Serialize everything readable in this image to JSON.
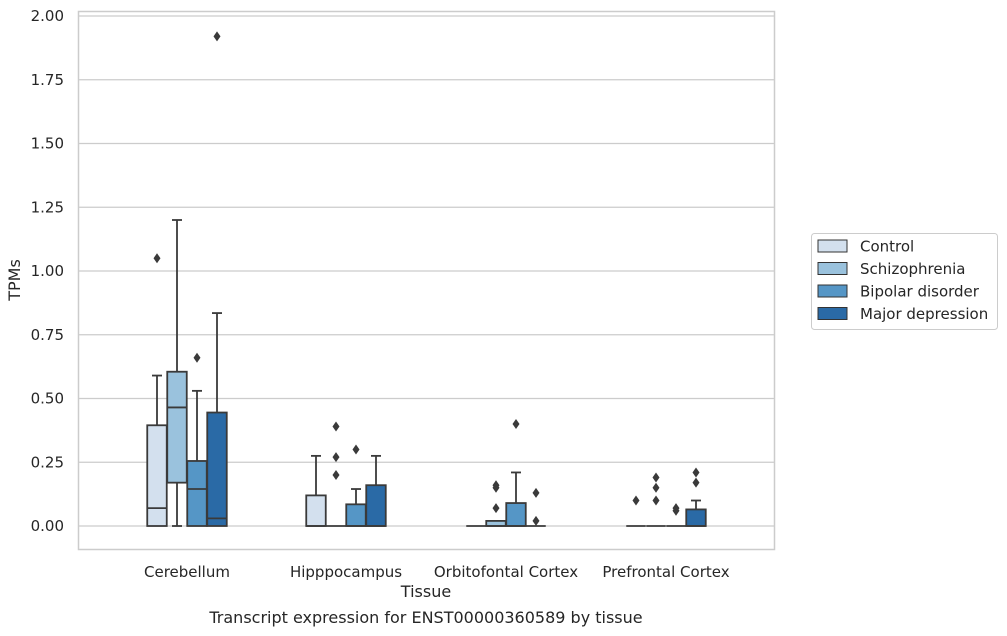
{
  "chart_data": {
    "type": "box",
    "title": "",
    "xlabel": "Tissue",
    "ylabel": "TPMs",
    "caption": "Transcript expression for ENST00000360589 by tissue",
    "categories": [
      "Cerebellum",
      "Hipppocampus",
      "Orbitofontal Cortex",
      "Prefrontal Cortex"
    ],
    "ylim": [
      -0.09,
      2.02
    ],
    "yticks": [
      "0.00",
      "0.25",
      "0.50",
      "0.75",
      "1.00",
      "1.25",
      "1.50",
      "1.75",
      "2.00"
    ],
    "grid": true,
    "legend_position": "right",
    "series": [
      {
        "name": "Control",
        "color": "#d3e0ee",
        "boxes": [
          {
            "category": "Cerebellum",
            "whisker_low": 0.0,
            "q1": 0.0,
            "median": 0.07,
            "q3": 0.395,
            "whisker_high": 0.59,
            "outliers": [
              1.05
            ]
          },
          {
            "category": "Hipppocampus",
            "whisker_low": 0.0,
            "q1": 0.0,
            "median": 0.0,
            "q3": 0.12,
            "whisker_high": 0.275,
            "outliers": []
          },
          {
            "category": "Orbitofontal Cortex",
            "whisker_low": 0.0,
            "q1": 0.0,
            "median": 0.0,
            "q3": 0.0,
            "whisker_high": 0.0,
            "outliers": []
          },
          {
            "category": "Prefrontal Cortex",
            "whisker_low": 0.0,
            "q1": 0.0,
            "median": 0.0,
            "q3": 0.0,
            "whisker_high": 0.0,
            "outliers": [
              0.1
            ]
          }
        ]
      },
      {
        "name": "Schizophrenia",
        "color": "#9ac2dd",
        "boxes": [
          {
            "category": "Cerebellum",
            "whisker_low": 0.0,
            "q1": 0.17,
            "median": 0.465,
            "q3": 0.605,
            "whisker_high": 1.2,
            "outliers": []
          },
          {
            "category": "Hipppocampus",
            "whisker_low": 0.0,
            "q1": 0.0,
            "median": 0.0,
            "q3": 0.0,
            "whisker_high": 0.0,
            "outliers": [
              0.2,
              0.27,
              0.39
            ]
          },
          {
            "category": "Orbitofontal Cortex",
            "whisker_low": 0.0,
            "q1": 0.0,
            "median": 0.0,
            "q3": 0.02,
            "whisker_high": 0.02,
            "outliers": [
              0.07,
              0.15,
              0.16
            ]
          },
          {
            "category": "Prefrontal Cortex",
            "whisker_low": 0.0,
            "q1": 0.0,
            "median": 0.0,
            "q3": 0.0,
            "whisker_high": 0.0,
            "outliers": [
              0.1,
              0.15,
              0.19
            ]
          }
        ]
      },
      {
        "name": "Bipolar disorder",
        "color": "#5596c6",
        "boxes": [
          {
            "category": "Cerebellum",
            "whisker_low": 0.0,
            "q1": 0.0,
            "median": 0.145,
            "q3": 0.255,
            "whisker_high": 0.53,
            "outliers": [
              0.66
            ]
          },
          {
            "category": "Hipppocampus",
            "whisker_low": 0.0,
            "q1": 0.0,
            "median": 0.0,
            "q3": 0.085,
            "whisker_high": 0.145,
            "outliers": [
              0.3
            ]
          },
          {
            "category": "Orbitofontal Cortex",
            "whisker_low": 0.0,
            "q1": 0.0,
            "median": 0.0,
            "q3": 0.09,
            "whisker_high": 0.21,
            "outliers": [
              0.4
            ]
          },
          {
            "category": "Prefrontal Cortex",
            "whisker_low": 0.0,
            "q1": 0.0,
            "median": 0.0,
            "q3": 0.0,
            "whisker_high": 0.0,
            "outliers": [
              0.06,
              0.07
            ]
          }
        ]
      },
      {
        "name": "Major depression",
        "color": "#2a6aa6",
        "boxes": [
          {
            "category": "Cerebellum",
            "whisker_low": 0.0,
            "q1": 0.0,
            "median": 0.03,
            "q3": 0.445,
            "whisker_high": 0.835,
            "outliers": [
              1.92
            ]
          },
          {
            "category": "Hipppocampus",
            "whisker_low": 0.0,
            "q1": 0.0,
            "median": 0.0,
            "q3": 0.16,
            "whisker_high": 0.275,
            "outliers": []
          },
          {
            "category": "Orbitofontal Cortex",
            "whisker_low": 0.0,
            "q1": 0.0,
            "median": 0.0,
            "q3": 0.0,
            "whisker_high": 0.0,
            "outliers": [
              0.02,
              0.13
            ]
          },
          {
            "category": "Prefrontal Cortex",
            "whisker_low": 0.0,
            "q1": 0.0,
            "median": 0.0,
            "q3": 0.065,
            "whisker_high": 0.1,
            "outliers": [
              0.17,
              0.21
            ]
          }
        ]
      }
    ]
  }
}
